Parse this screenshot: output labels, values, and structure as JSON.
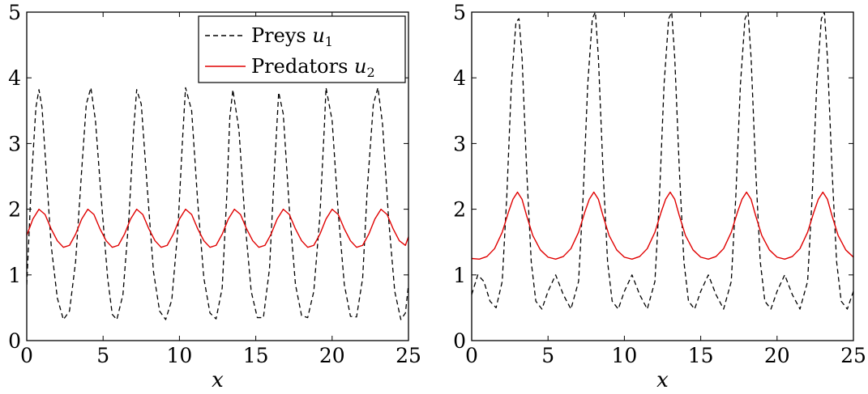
{
  "chart_data": [
    {
      "type": "line",
      "xlabel": "x",
      "ylabel": "",
      "xlim": [
        0,
        25
      ],
      "ylim": [
        0,
        5
      ],
      "x_ticks": [
        0,
        5,
        10,
        15,
        20,
        25
      ],
      "y_ticks": [
        0,
        1,
        2,
        3,
        4,
        5
      ],
      "x_tick_labels": [
        "0",
        "5",
        "10",
        "15",
        "20",
        "25"
      ],
      "y_tick_labels": [
        "0",
        "1",
        "2",
        "3",
        "4",
        "5"
      ],
      "grid": false,
      "legend": {
        "placement": "top-right",
        "entries": [
          {
            "label": "Preys ",
            "math": "u",
            "sub": "1",
            "style": "dashed",
            "color": "#000000"
          },
          {
            "label": "Predators ",
            "math": "u",
            "sub": "2",
            "style": "solid",
            "color": "#e00000"
          }
        ]
      },
      "series": [
        {
          "name": "Preys u1",
          "color": "#000000",
          "style": "dashed",
          "x": [
            0,
            0.3,
            0.6,
            0.8,
            1.0,
            1.3,
            1.6,
            2.0,
            2.4,
            2.8,
            3.2,
            3.6,
            3.9,
            4.2,
            4.5,
            4.9,
            5.3,
            5.6,
            5.9,
            6.3,
            6.7,
            7.0,
            7.2,
            7.5,
            7.9,
            8.3,
            8.7,
            9.1,
            9.5,
            9.9,
            10.2,
            10.4,
            10.8,
            11.2,
            11.6,
            12.0,
            12.4,
            12.8,
            13.1,
            13.3,
            13.5,
            13.9,
            14.3,
            14.7,
            15.1,
            15.5,
            15.9,
            16.2,
            16.5,
            16.8,
            17.2,
            17.6,
            18.0,
            18.4,
            18.8,
            19.2,
            19.5,
            19.6,
            20.0,
            20.4,
            20.8,
            21.2,
            21.6,
            22.0,
            22.3,
            22.7,
            23.0,
            23.3,
            23.7,
            24.1,
            24.5,
            24.8,
            25.0
          ],
          "y": [
            0.85,
            2.4,
            3.55,
            3.82,
            3.55,
            2.5,
            1.45,
            0.65,
            0.32,
            0.45,
            1.2,
            2.6,
            3.6,
            3.85,
            3.35,
            2.1,
            0.95,
            0.4,
            0.32,
            0.7,
            1.9,
            3.2,
            3.82,
            3.6,
            2.3,
            1.05,
            0.45,
            0.32,
            0.62,
            1.7,
            3.05,
            3.85,
            3.5,
            2.1,
            0.95,
            0.42,
            0.33,
            0.8,
            2.2,
            3.4,
            3.82,
            3.2,
            1.8,
            0.75,
            0.35,
            0.35,
            1.1,
            2.5,
            3.78,
            3.45,
            2.0,
            0.85,
            0.38,
            0.35,
            0.75,
            1.9,
            3.3,
            3.85,
            3.35,
            1.95,
            0.85,
            0.37,
            0.36,
            0.95,
            2.3,
            3.6,
            3.85,
            3.3,
            1.85,
            0.75,
            0.32,
            0.42,
            0.85
          ]
        },
        {
          "name": "Predators u2",
          "color": "#e00000",
          "style": "solid",
          "x": [
            0,
            0.4,
            0.8,
            1.2,
            1.6,
            2.0,
            2.4,
            2.8,
            3.2,
            3.6,
            4.0,
            4.4,
            4.8,
            5.2,
            5.6,
            6.0,
            6.4,
            6.8,
            7.2,
            7.6,
            8.0,
            8.4,
            8.8,
            9.2,
            9.6,
            10.0,
            10.4,
            10.8,
            11.2,
            11.6,
            12.0,
            12.4,
            12.8,
            13.2,
            13.6,
            14.0,
            14.4,
            14.8,
            15.2,
            15.6,
            16.0,
            16.4,
            16.8,
            17.2,
            17.6,
            18.0,
            18.4,
            18.8,
            19.2,
            19.6,
            20.0,
            20.4,
            20.8,
            21.2,
            21.6,
            22.0,
            22.4,
            22.8,
            23.2,
            23.6,
            24.0,
            24.4,
            24.8,
            25.0
          ],
          "y": [
            1.6,
            1.85,
            2.0,
            1.92,
            1.7,
            1.52,
            1.42,
            1.45,
            1.62,
            1.85,
            2.0,
            1.92,
            1.7,
            1.52,
            1.42,
            1.45,
            1.62,
            1.85,
            2.0,
            1.92,
            1.7,
            1.52,
            1.42,
            1.45,
            1.62,
            1.85,
            2.0,
            1.92,
            1.7,
            1.52,
            1.42,
            1.45,
            1.62,
            1.85,
            2.0,
            1.92,
            1.7,
            1.52,
            1.42,
            1.45,
            1.62,
            1.85,
            2.0,
            1.92,
            1.7,
            1.52,
            1.42,
            1.45,
            1.62,
            1.85,
            2.0,
            1.92,
            1.7,
            1.52,
            1.42,
            1.45,
            1.62,
            1.85,
            2.0,
            1.92,
            1.7,
            1.52,
            1.45,
            1.58
          ]
        }
      ]
    },
    {
      "type": "line",
      "xlabel": "x",
      "ylabel": "",
      "xlim": [
        0,
        25
      ],
      "ylim": [
        0,
        5
      ],
      "x_ticks": [
        0,
        5,
        10,
        15,
        20,
        25
      ],
      "y_ticks": [
        0,
        1,
        2,
        3,
        4,
        5
      ],
      "x_tick_labels": [
        "0",
        "5",
        "10",
        "15",
        "20",
        "25"
      ],
      "y_tick_labels": [
        "0",
        "1",
        "2",
        "3",
        "4",
        "5"
      ],
      "grid": false,
      "series": [
        {
          "name": "Preys u1",
          "color": "#000000",
          "style": "dashed",
          "x": [
            0,
            0.4,
            0.8,
            1.2,
            1.6,
            2.0,
            2.3,
            2.6,
            2.9,
            3.1,
            3.3,
            3.6,
            3.9,
            4.2,
            4.6,
            5.0,
            5.5,
            6.0,
            6.5,
            7.0,
            7.3,
            7.6,
            7.9,
            8.1,
            8.3,
            8.6,
            8.9,
            9.2,
            9.6,
            10.0,
            10.5,
            11.0,
            11.5,
            12.0,
            12.3,
            12.6,
            12.9,
            13.1,
            13.3,
            13.6,
            13.9,
            14.2,
            14.6,
            15.0,
            15.5,
            16.0,
            16.5,
            17.0,
            17.3,
            17.6,
            17.9,
            18.1,
            18.3,
            18.6,
            18.9,
            19.2,
            19.6,
            20.0,
            20.5,
            21.0,
            21.5,
            22.0,
            22.3,
            22.6,
            22.9,
            23.1,
            23.3,
            23.6,
            23.9,
            24.2,
            24.6,
            25.0
          ],
          "y": [
            0.7,
            1.0,
            0.9,
            0.6,
            0.5,
            0.9,
            2.2,
            3.9,
            4.85,
            4.9,
            4.3,
            2.6,
            1.2,
            0.6,
            0.48,
            0.75,
            1.0,
            0.7,
            0.48,
            0.9,
            2.2,
            3.9,
            4.9,
            5.0,
            4.3,
            2.6,
            1.2,
            0.6,
            0.48,
            0.75,
            1.0,
            0.7,
            0.48,
            0.9,
            2.2,
            3.9,
            4.9,
            5.0,
            4.3,
            2.6,
            1.2,
            0.6,
            0.48,
            0.75,
            1.0,
            0.7,
            0.48,
            0.9,
            2.2,
            3.9,
            4.9,
            5.0,
            4.3,
            2.6,
            1.2,
            0.6,
            0.48,
            0.75,
            1.0,
            0.7,
            0.48,
            0.9,
            2.2,
            3.9,
            4.9,
            5.0,
            4.3,
            2.6,
            1.2,
            0.6,
            0.48,
            0.75
          ]
        },
        {
          "name": "Predators u2",
          "color": "#e00000",
          "style": "solid",
          "x": [
            0,
            0.5,
            1.0,
            1.5,
            2.0,
            2.4,
            2.7,
            3.0,
            3.3,
            3.6,
            4.0,
            4.5,
            5.0,
            5.5,
            6.0,
            6.5,
            7.0,
            7.4,
            7.7,
            8.0,
            8.3,
            8.6,
            9.0,
            9.5,
            10.0,
            10.5,
            11.0,
            11.5,
            12.0,
            12.4,
            12.7,
            13.0,
            13.3,
            13.6,
            14.0,
            14.5,
            15.0,
            15.5,
            16.0,
            16.5,
            17.0,
            17.4,
            17.7,
            18.0,
            18.3,
            18.6,
            19.0,
            19.5,
            20.0,
            20.5,
            21.0,
            21.5,
            22.0,
            22.4,
            22.7,
            23.0,
            23.3,
            23.6,
            24.0,
            24.5,
            25.0
          ],
          "y": [
            1.25,
            1.24,
            1.28,
            1.4,
            1.65,
            1.95,
            2.15,
            2.26,
            2.15,
            1.9,
            1.6,
            1.38,
            1.27,
            1.24,
            1.28,
            1.4,
            1.65,
            1.95,
            2.15,
            2.26,
            2.15,
            1.9,
            1.6,
            1.38,
            1.27,
            1.24,
            1.28,
            1.4,
            1.65,
            1.95,
            2.15,
            2.26,
            2.15,
            1.9,
            1.6,
            1.38,
            1.27,
            1.24,
            1.28,
            1.4,
            1.65,
            1.95,
            2.15,
            2.26,
            2.15,
            1.9,
            1.6,
            1.38,
            1.27,
            1.24,
            1.28,
            1.4,
            1.65,
            1.95,
            2.15,
            2.26,
            2.15,
            1.9,
            1.6,
            1.38,
            1.27
          ]
        }
      ]
    }
  ]
}
